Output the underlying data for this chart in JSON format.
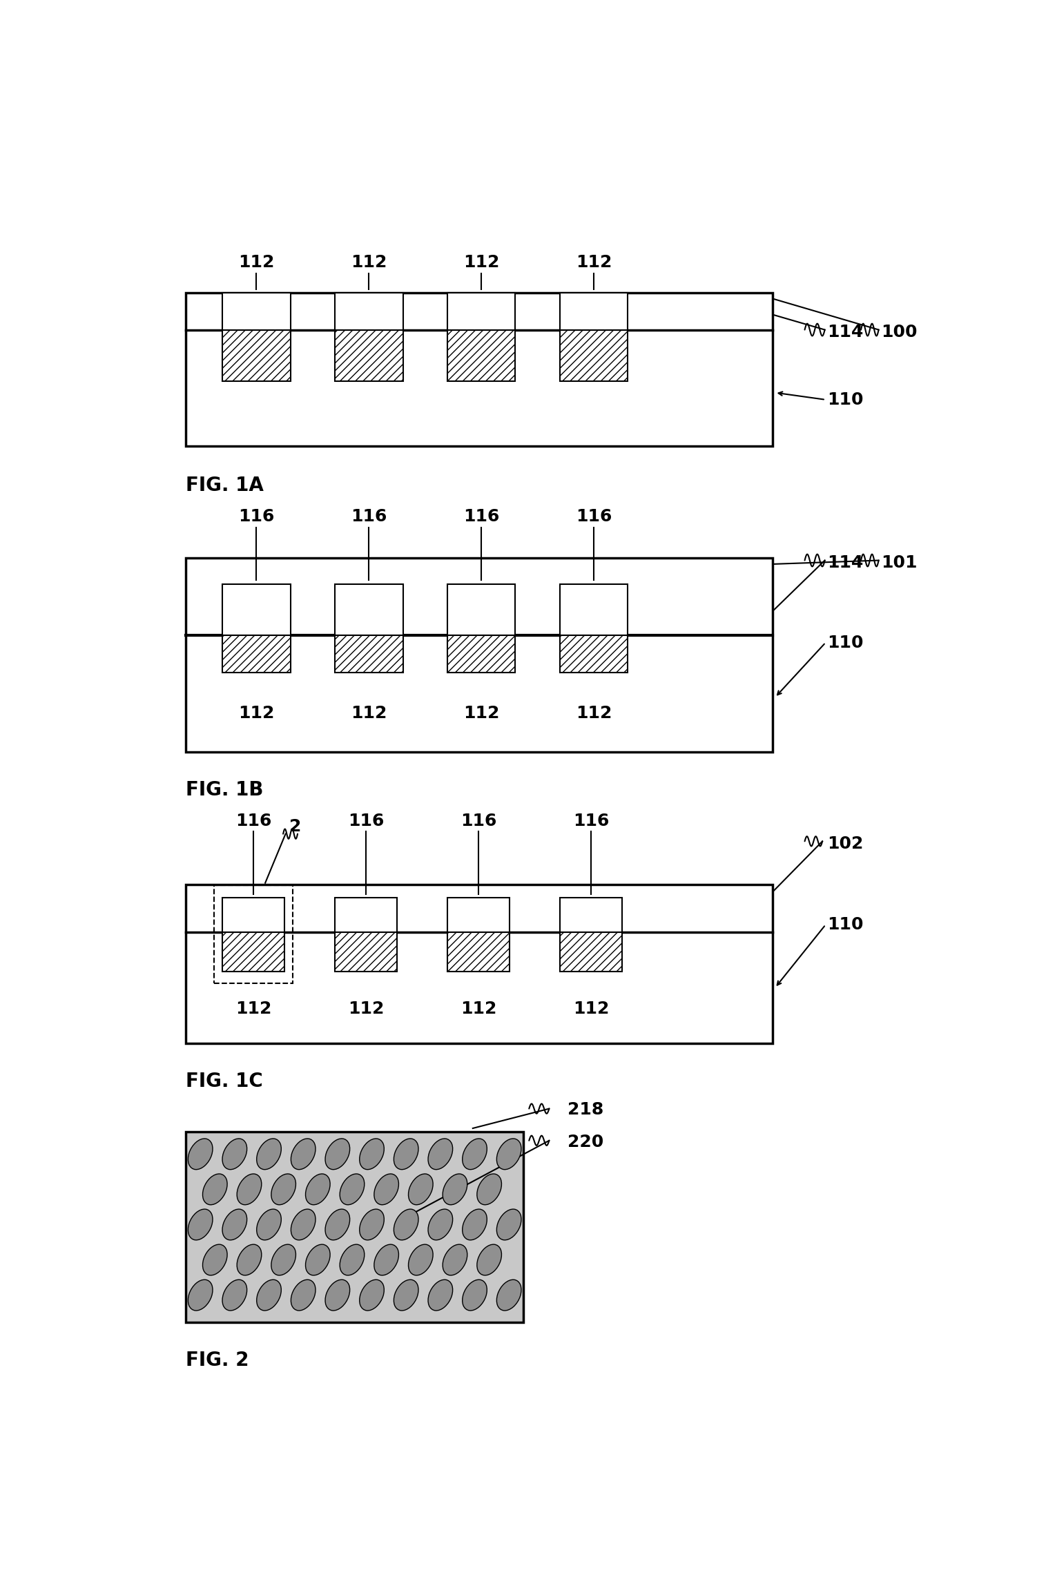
{
  "bg_color": "#ffffff",
  "fig_width": 15.02,
  "fig_height": 23.07,
  "fig1a": {
    "title": "FIG. 1A",
    "label_100": "100",
    "label_110": "110",
    "label_114": "114",
    "labels_112": [
      "112",
      "112",
      "112",
      "112"
    ]
  },
  "fig1b": {
    "title": "FIG. 1B",
    "label_101": "101",
    "label_110": "110",
    "label_114": "114",
    "labels_112": [
      "112",
      "112",
      "112",
      "112"
    ],
    "labels_116": [
      "116",
      "116",
      "116",
      "116"
    ]
  },
  "fig1c": {
    "title": "FIG. 1C",
    "label_102": "102",
    "label_110": "110",
    "labels_112": [
      "112",
      "112",
      "112",
      "112"
    ],
    "labels_116": [
      "116",
      "116",
      "116",
      "116"
    ],
    "label_2": "2"
  },
  "fig2": {
    "title": "FIG. 2",
    "label_218": "218",
    "label_220": "220"
  }
}
